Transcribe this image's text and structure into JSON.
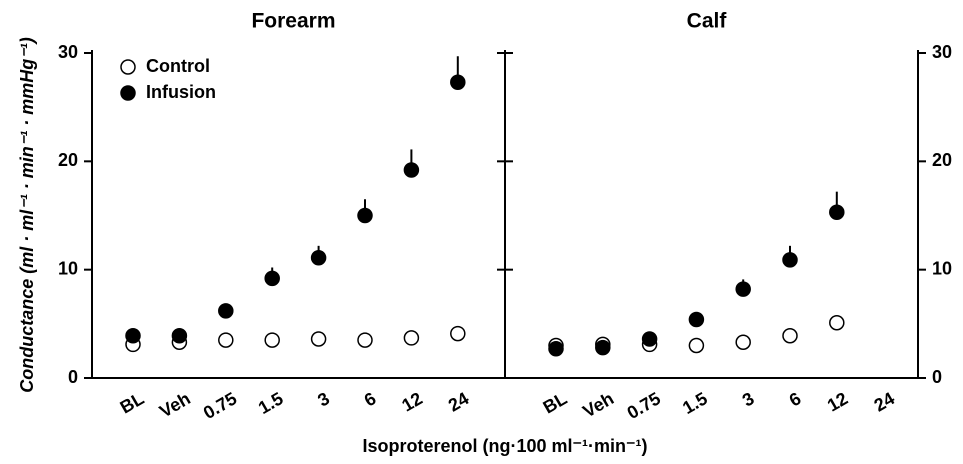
{
  "ylabel": "Conductance (ml · ml⁻¹ · min⁻¹ · mmHg⁻¹)",
  "xlabel": "Isoproterenol (ng·100 ml⁻¹·min⁻¹)",
  "chart_data": [
    {
      "type": "scatter",
      "title": "Forearm",
      "categories": [
        "BL",
        "Veh",
        "0.75",
        "1.5",
        "3",
        "6",
        "12",
        "24"
      ],
      "series": [
        {
          "name": "Control",
          "color": "#ffffff",
          "values": [
            3.1,
            3.3,
            3.5,
            3.5,
            3.6,
            3.5,
            3.7,
            4.1
          ]
        },
        {
          "name": "Infusion",
          "color": "#000000",
          "values": [
            3.9,
            3.9,
            6.2,
            9.2,
            11.1,
            15.0,
            19.2,
            27.3
          ],
          "errors": [
            0,
            0,
            0,
            1.0,
            1.1,
            1.5,
            1.9,
            2.4
          ]
        }
      ],
      "ylim": [
        0,
        30
      ],
      "yticks": [
        0,
        10,
        20,
        30
      ],
      "legend": "upper left"
    },
    {
      "type": "scatter",
      "title": "Calf",
      "categories": [
        "BL",
        "Veh",
        "0.75",
        "1.5",
        "3",
        "6",
        "12",
        "24"
      ],
      "series": [
        {
          "name": "Control",
          "color": "#ffffff",
          "values": [
            3.0,
            3.1,
            3.1,
            3.0,
            3.3,
            3.9,
            5.1,
            null
          ]
        },
        {
          "name": "Infusion",
          "color": "#000000",
          "values": [
            2.7,
            2.8,
            3.6,
            5.4,
            8.2,
            10.9,
            15.3,
            null
          ],
          "errors": [
            0,
            0,
            0,
            0.2,
            0.9,
            1.3,
            1.9,
            null
          ]
        }
      ],
      "ylim": [
        0,
        30
      ],
      "yticks": [
        0,
        10,
        20,
        30
      ]
    }
  ]
}
